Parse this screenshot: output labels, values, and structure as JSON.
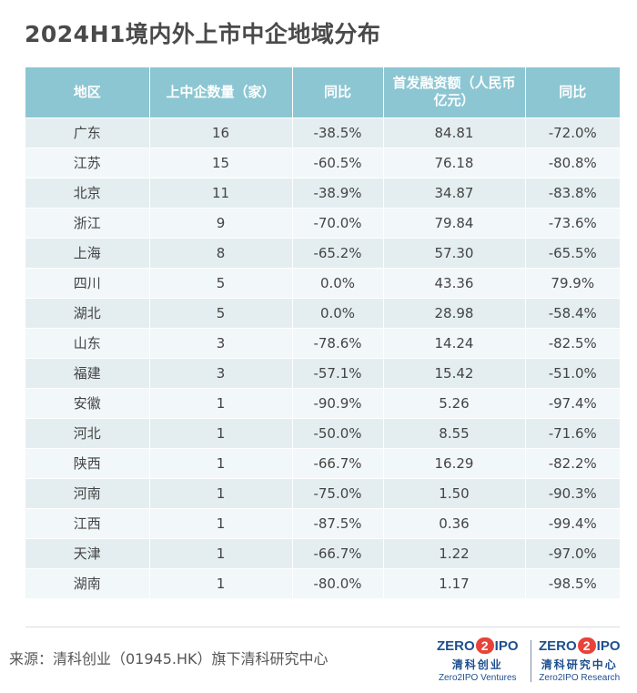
{
  "title": "2024H1境内外上市中企地域分布",
  "table": {
    "headers": [
      "地区",
      "上中企数量（家）",
      "同比",
      "首发融资额（人民币亿元）",
      "同比"
    ],
    "rows": [
      [
        "广东",
        "16",
        "-38.5%",
        "84.81",
        "-72.0%"
      ],
      [
        "江苏",
        "15",
        "-60.5%",
        "76.18",
        "-80.8%"
      ],
      [
        "北京",
        "11",
        "-38.9%",
        "34.87",
        "-83.8%"
      ],
      [
        "浙江",
        "9",
        "-70.0%",
        "79.84",
        "-73.6%"
      ],
      [
        "上海",
        "8",
        "-65.2%",
        "57.30",
        "-65.5%"
      ],
      [
        "四川",
        "5",
        "0.0%",
        "43.36",
        "79.9%"
      ],
      [
        "湖北",
        "5",
        "0.0%",
        "28.98",
        "-58.4%"
      ],
      [
        "山东",
        "3",
        "-78.6%",
        "14.24",
        "-82.5%"
      ],
      [
        "福建",
        "3",
        "-57.1%",
        "15.42",
        "-51.0%"
      ],
      [
        "安徽",
        "1",
        "-90.9%",
        "5.26",
        "-97.4%"
      ],
      [
        "河北",
        "1",
        "-50.0%",
        "8.55",
        "-71.6%"
      ],
      [
        "陕西",
        "1",
        "-66.7%",
        "16.29",
        "-82.2%"
      ],
      [
        "河南",
        "1",
        "-75.0%",
        "1.50",
        "-90.3%"
      ],
      [
        "江西",
        "1",
        "-87.5%",
        "0.36",
        "-99.4%"
      ],
      [
        "天津",
        "1",
        "-66.7%",
        "1.22",
        "-97.0%"
      ],
      [
        "湖南",
        "1",
        "-80.0%",
        "1.17",
        "-98.5%"
      ]
    ]
  },
  "source": "来源：清科创业（01945.HK）旗下清科研究中心",
  "logos": [
    {
      "mark_left": "ZERO",
      "mark_mid": "2",
      "mark_right": "IPO",
      "cn": "清科创业",
      "en": "Zero2IPO Ventures"
    },
    {
      "mark_left": "ZERO",
      "mark_mid": "2",
      "mark_right": "IPO",
      "cn": "清科研究中心",
      "en": "Zero2IPO Research"
    }
  ],
  "colors": {
    "header": "#8cc6d2",
    "row_odd": "#e4eef1",
    "row_even": "#f2f7f9",
    "brand": "#1e4f8f",
    "brand_accent": "#e8433a"
  }
}
